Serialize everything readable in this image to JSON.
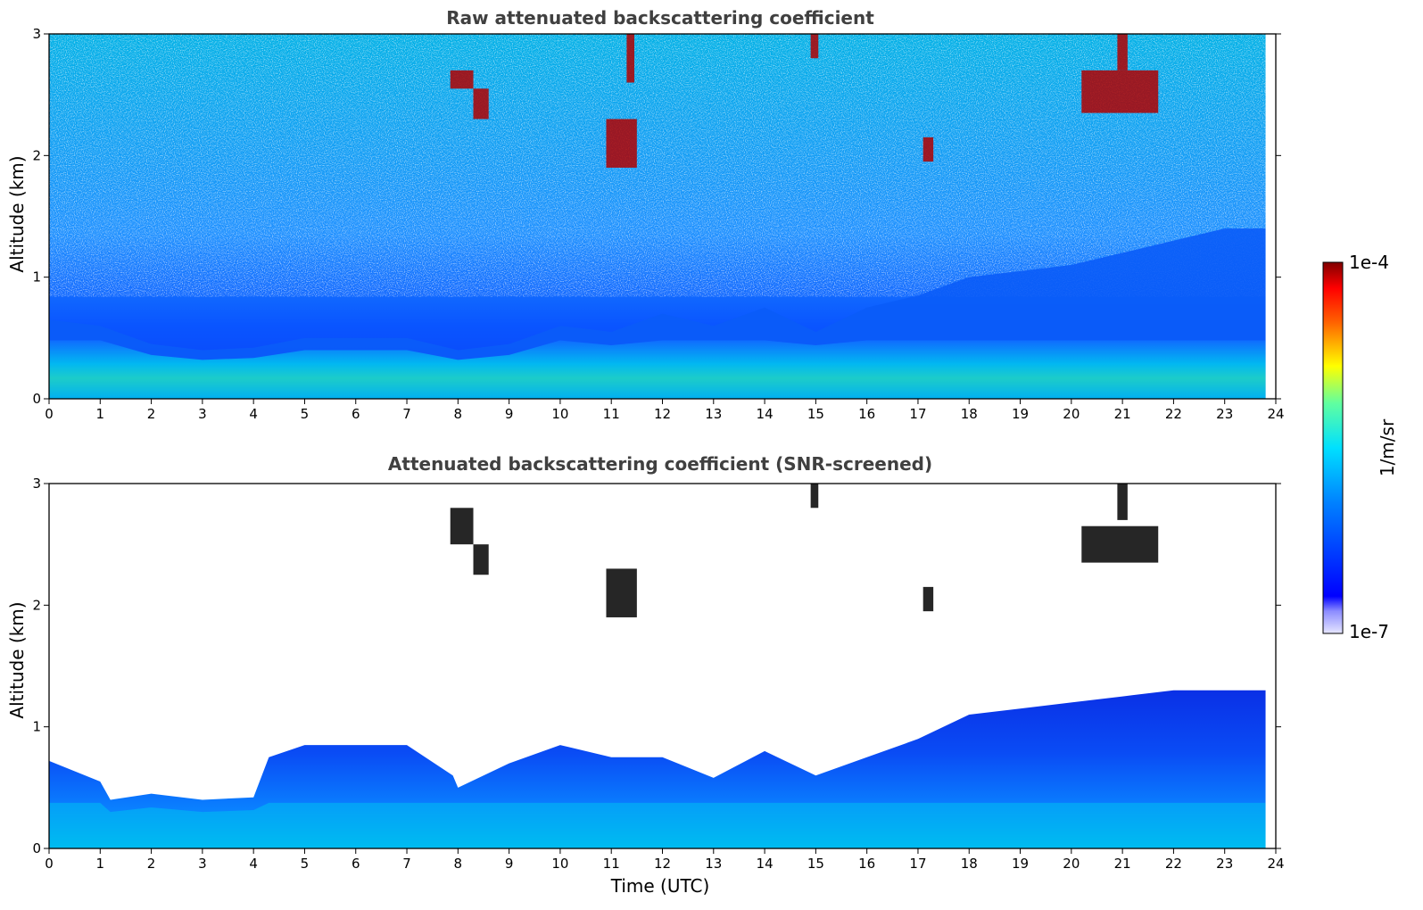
{
  "chart_data": [
    {
      "type": "heatmap",
      "title": "Raw attenuated backscattering coefficient",
      "xlabel": "",
      "ylabel": "Altitude (km)",
      "xlim": [
        0,
        24
      ],
      "ylim": [
        0,
        3
      ],
      "xticks": [
        0,
        1,
        2,
        3,
        4,
        5,
        6,
        7,
        8,
        9,
        10,
        11,
        12,
        13,
        14,
        15,
        16,
        17,
        18,
        19,
        20,
        21,
        22,
        23,
        24
      ],
      "yticks": [
        0,
        1,
        2,
        3
      ],
      "data_extent_x": [
        0,
        23.8
      ],
      "screened": false,
      "mixing_layer_top_km": [
        [
          0,
          0.65
        ],
        [
          1,
          0.6
        ],
        [
          2,
          0.45
        ],
        [
          3,
          0.4
        ],
        [
          4,
          0.42
        ],
        [
          5,
          0.5
        ],
        [
          6,
          0.5
        ],
        [
          7,
          0.5
        ],
        [
          8,
          0.4
        ],
        [
          9,
          0.45
        ],
        [
          10,
          0.6
        ],
        [
          11,
          0.55
        ],
        [
          12,
          0.7
        ],
        [
          13,
          0.6
        ],
        [
          14,
          0.75
        ],
        [
          15,
          0.55
        ],
        [
          16,
          0.75
        ],
        [
          17,
          0.85
        ],
        [
          18,
          1.0
        ],
        [
          19,
          1.05
        ],
        [
          20,
          1.1
        ],
        [
          21,
          1.2
        ],
        [
          22,
          1.3
        ],
        [
          23,
          1.4
        ],
        [
          23.8,
          1.4
        ]
      ],
      "cloud_features": [
        {
          "x": [
            7.85,
            8.3
          ],
          "y": [
            2.55,
            2.7
          ]
        },
        {
          "x": [
            8.3,
            8.6
          ],
          "y": [
            2.3,
            2.55
          ]
        },
        {
          "x": [
            10.9,
            11.5
          ],
          "y": [
            1.9,
            2.3
          ]
        },
        {
          "x": [
            11.3,
            11.45
          ],
          "y": [
            2.6,
            3.0
          ]
        },
        {
          "x": [
            14.9,
            15.05
          ],
          "y": [
            2.8,
            3.0
          ]
        },
        {
          "x": [
            17.1,
            17.3
          ],
          "y": [
            1.95,
            2.15
          ]
        },
        {
          "x": [
            20.2,
            21.7
          ],
          "y": [
            2.35,
            2.7
          ]
        },
        {
          "x": [
            20.9,
            21.1
          ],
          "y": [
            2.7,
            3.0
          ]
        }
      ]
    },
    {
      "type": "heatmap",
      "title": "Attenuated backscattering coefficient (SNR-screened)",
      "xlabel": "Time (UTC)",
      "ylabel": "Altitude (km)",
      "xlim": [
        0,
        24
      ],
      "ylim": [
        0,
        3
      ],
      "xticks": [
        0,
        1,
        2,
        3,
        4,
        5,
        6,
        7,
        8,
        9,
        10,
        11,
        12,
        13,
        14,
        15,
        16,
        17,
        18,
        19,
        20,
        21,
        22,
        23,
        24
      ],
      "yticks": [
        0,
        1,
        2,
        3
      ],
      "data_extent_x": [
        0,
        23.8
      ],
      "screened": true,
      "screened_top_km": [
        [
          0,
          0.72
        ],
        [
          1,
          0.55
        ],
        [
          1.2,
          0.4
        ],
        [
          2,
          0.45
        ],
        [
          3,
          0.4
        ],
        [
          4,
          0.42
        ],
        [
          4.3,
          0.75
        ],
        [
          5,
          0.85
        ],
        [
          6,
          0.85
        ],
        [
          7,
          0.85
        ],
        [
          7.9,
          0.6
        ],
        [
          8,
          0.5
        ],
        [
          9,
          0.7
        ],
        [
          10,
          0.85
        ],
        [
          11,
          0.75
        ],
        [
          12,
          0.75
        ],
        [
          13,
          0.58
        ],
        [
          14,
          0.8
        ],
        [
          15,
          0.6
        ],
        [
          16,
          0.75
        ],
        [
          17,
          0.9
        ],
        [
          18,
          1.1
        ],
        [
          19,
          1.15
        ],
        [
          20,
          1.2
        ],
        [
          21,
          1.25
        ],
        [
          22,
          1.3
        ],
        [
          23,
          1.3
        ],
        [
          23.8,
          1.3
        ]
      ],
      "cloud_features": [
        {
          "x": [
            7.85,
            8.3
          ],
          "y": [
            2.5,
            2.8
          ]
        },
        {
          "x": [
            8.3,
            8.6
          ],
          "y": [
            2.25,
            2.5
          ]
        },
        {
          "x": [
            10.9,
            11.5
          ],
          "y": [
            1.9,
            2.3
          ]
        },
        {
          "x": [
            14.9,
            15.05
          ],
          "y": [
            2.8,
            3.0
          ]
        },
        {
          "x": [
            17.1,
            17.3
          ],
          "y": [
            1.95,
            2.15
          ]
        },
        {
          "x": [
            20.2,
            21.7
          ],
          "y": [
            2.35,
            2.65
          ]
        },
        {
          "x": [
            20.9,
            21.1
          ],
          "y": [
            2.7,
            3.0
          ]
        }
      ]
    }
  ],
  "colorbar": {
    "label": "1/m/sr",
    "max_label": "1e-4",
    "min_label": "1e-7",
    "colormap": "jet"
  },
  "colors": {
    "boundary_layer": "#00c8f0",
    "aerosol": "#0a50ff",
    "noise": "#28a0ff",
    "cloud": "#b00000",
    "cloud_screened": "#000000"
  }
}
